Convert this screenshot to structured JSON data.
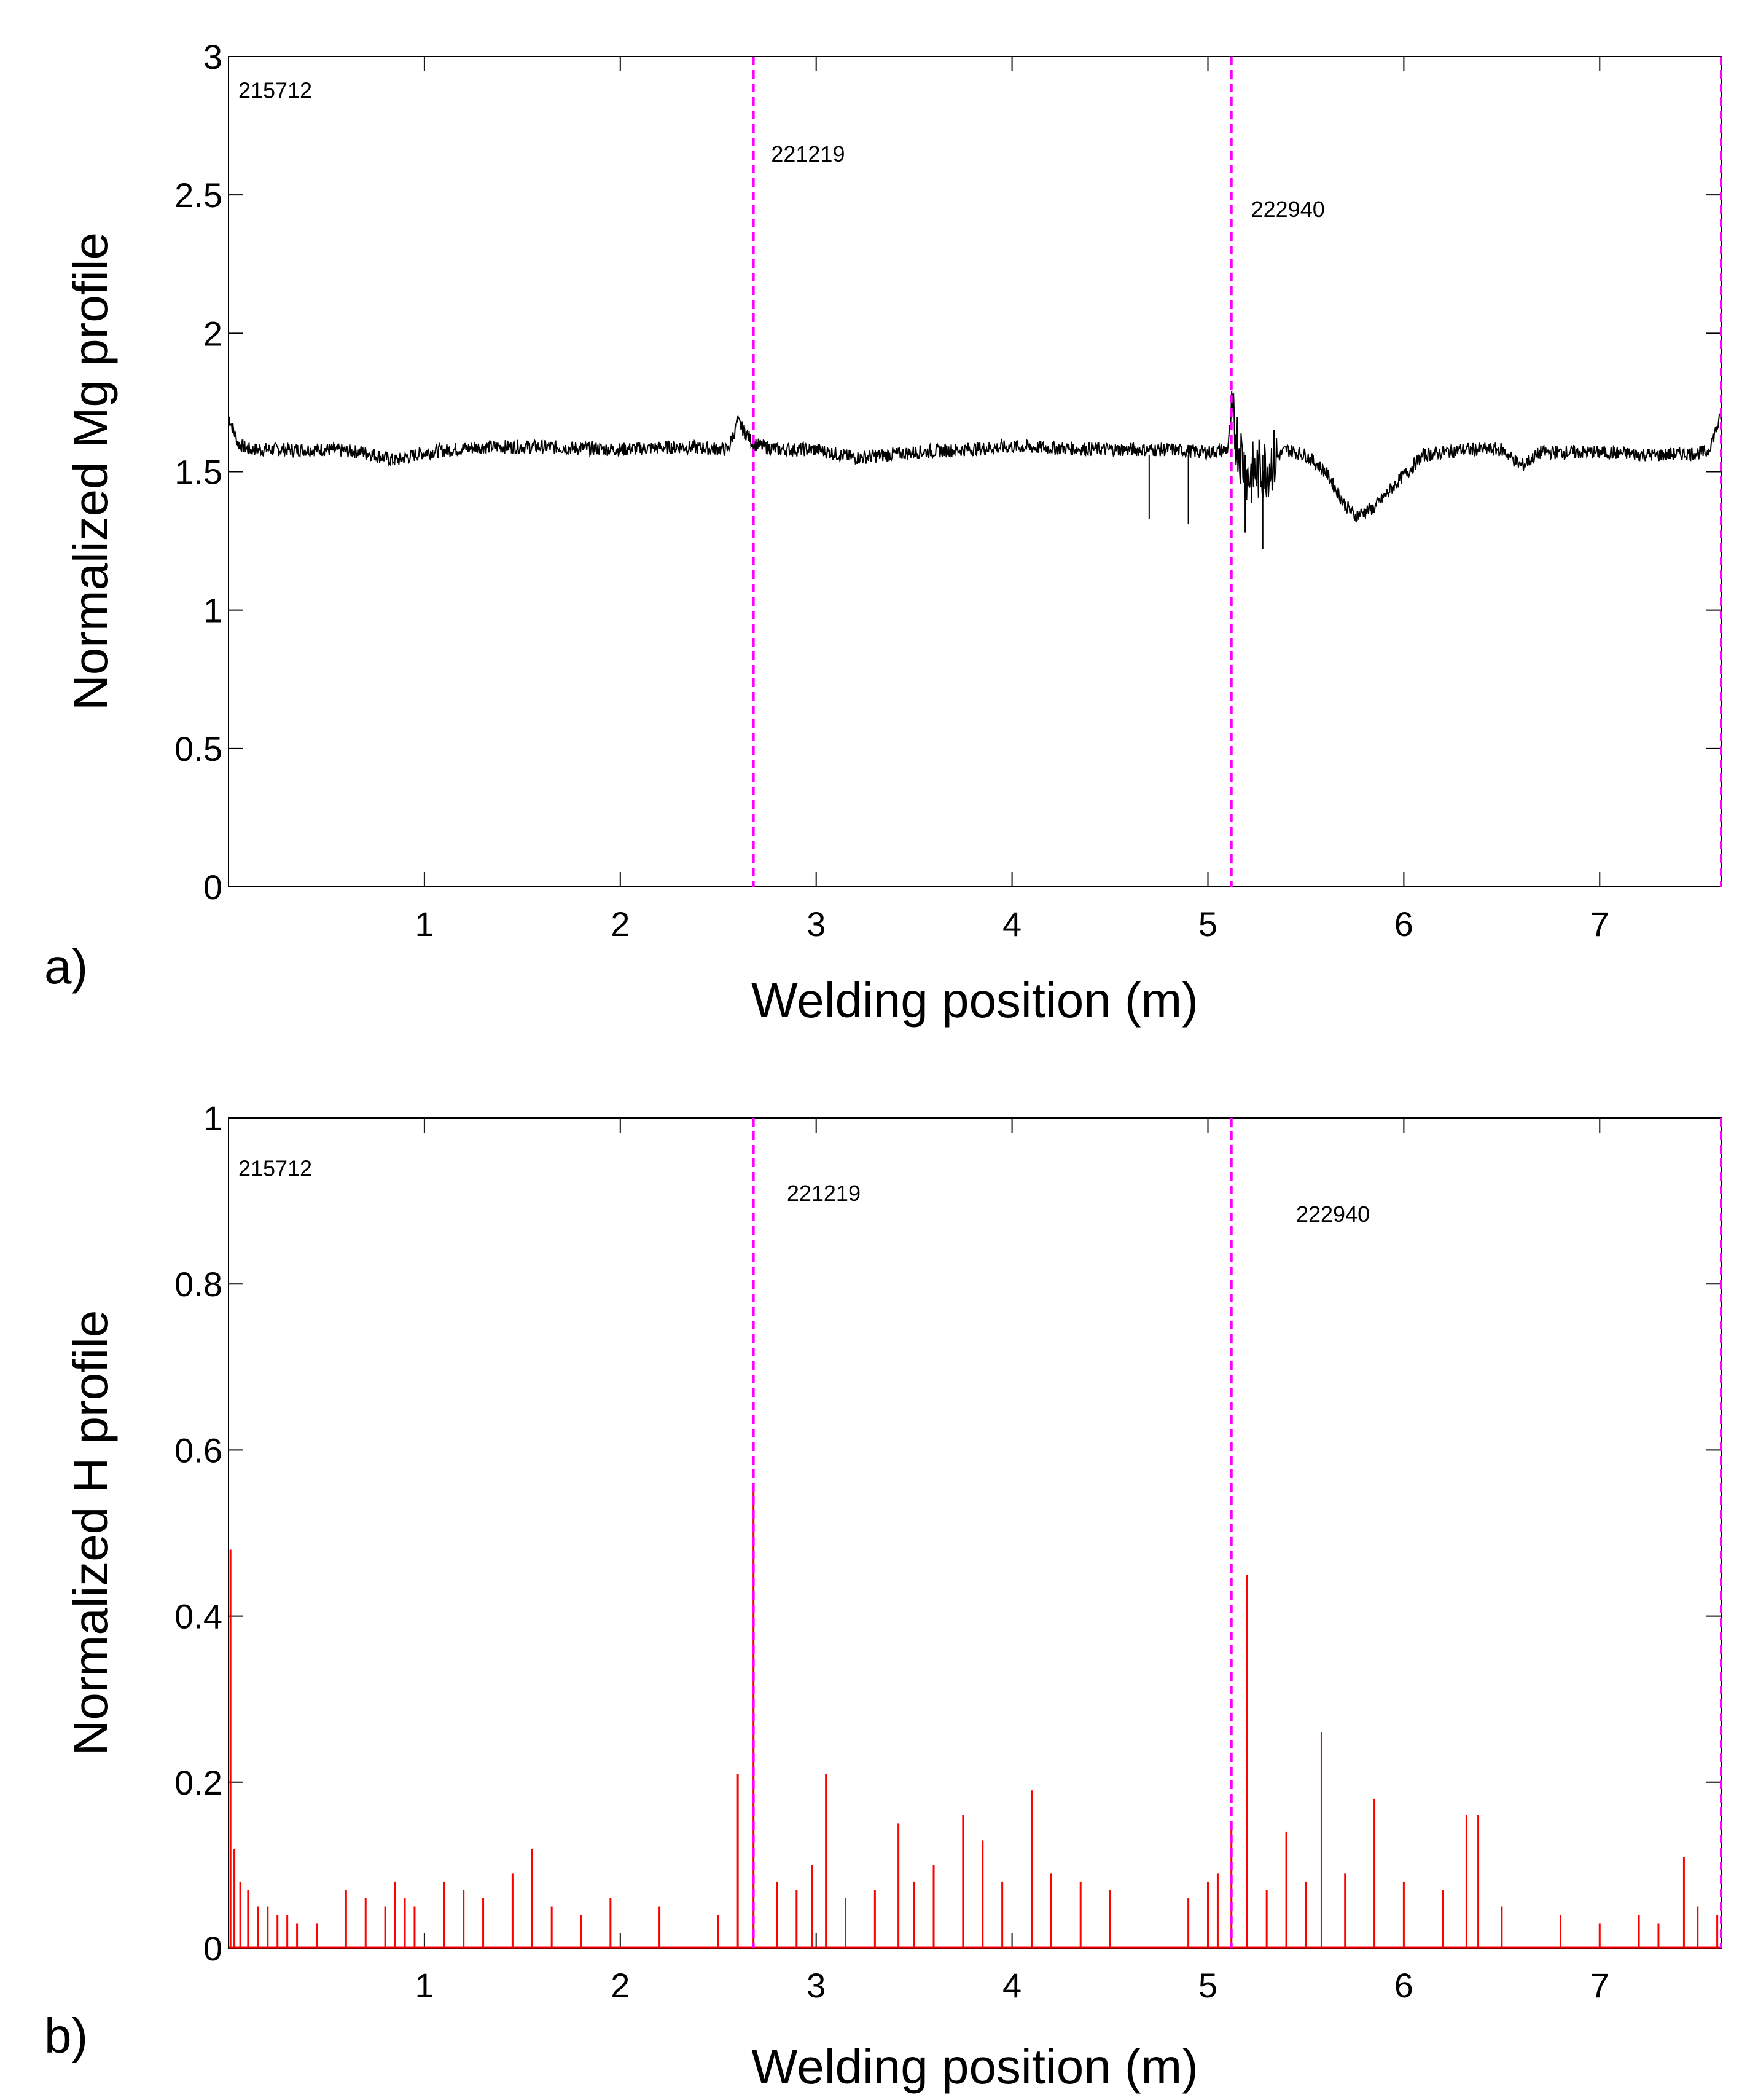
{
  "chart_data": [
    {
      "type": "line",
      "panel_label": "a)",
      "xlabel": "Welding position (m)",
      "ylabel": "Normalized Mg profile",
      "xlim": [
        0,
        7.62
      ],
      "ylim": [
        0,
        3
      ],
      "xticks": [
        1,
        2,
        3,
        4,
        5,
        6,
        7
      ],
      "xtick_labels": [
        "1",
        "2",
        "3",
        "4",
        "5",
        "6",
        "7"
      ],
      "yticks": [
        0,
        0.5,
        1,
        1.5,
        2,
        2.5,
        3
      ],
      "ytick_labels": [
        "0",
        "0.5",
        "1",
        "1.5",
        "2",
        "2.5",
        "3"
      ],
      "line_color": "#000000",
      "divider_color": "#ff00ff",
      "dividers_x": [
        2.68,
        5.12,
        7.62
      ],
      "annotations": [
        {
          "x": 0.05,
          "y": 2.85,
          "text": "215712"
        },
        {
          "x": 2.77,
          "y": 2.62,
          "text": "221219"
        },
        {
          "x": 5.22,
          "y": 2.42,
          "text": "222940"
        }
      ],
      "series": [
        {
          "name": "Mg profile",
          "x": [
            0,
            0.05,
            0.1,
            0.3,
            0.5,
            0.7,
            0.85,
            1.0,
            1.3,
            1.6,
            2.0,
            2.3,
            2.55,
            2.6,
            2.68,
            2.8,
            3.0,
            3.2,
            3.5,
            4.0,
            4.5,
            4.8,
            5.0,
            5.1,
            5.12,
            5.2,
            5.3,
            5.4,
            5.5,
            5.6,
            5.7,
            5.75,
            5.85,
            5.95,
            6.1,
            6.3,
            6.5,
            6.6,
            6.7,
            7.0,
            7.3,
            7.55,
            7.62
          ],
          "y": [
            1.7,
            1.6,
            1.58,
            1.58,
            1.58,
            1.57,
            1.54,
            1.57,
            1.59,
            1.59,
            1.58,
            1.59,
            1.58,
            1.68,
            1.6,
            1.58,
            1.58,
            1.55,
            1.57,
            1.59,
            1.58,
            1.58,
            1.57,
            1.58,
            1.7,
            1.48,
            1.52,
            1.58,
            1.56,
            1.5,
            1.38,
            1.34,
            1.37,
            1.45,
            1.56,
            1.58,
            1.58,
            1.52,
            1.57,
            1.57,
            1.56,
            1.57,
            1.7
          ]
        }
      ],
      "outliers": [
        {
          "x": 4.7,
          "y": 1.33
        },
        {
          "x": 4.9,
          "y": 1.31
        },
        {
          "x": 5.19,
          "y": 1.28
        },
        {
          "x": 5.28,
          "y": 1.22
        }
      ]
    },
    {
      "type": "bar",
      "panel_label": "b)",
      "xlabel": "Welding position (m)",
      "ylabel": "Normalized H profile",
      "xlim": [
        0,
        7.62
      ],
      "ylim": [
        0,
        1
      ],
      "xticks": [
        1,
        2,
        3,
        4,
        5,
        6,
        7
      ],
      "xtick_labels": [
        "1",
        "2",
        "3",
        "4",
        "5",
        "6",
        "7"
      ],
      "yticks": [
        0,
        0.2,
        0.4,
        0.6,
        0.8,
        1
      ],
      "ytick_labels": [
        "0",
        "0.2",
        "0.4",
        "0.6",
        "0.8",
        "1"
      ],
      "bar_color": "#ff0000",
      "divider_color": "#ff00ff",
      "dividers_x": [
        2.68,
        5.12,
        7.62
      ],
      "annotations": [
        {
          "x": 0.05,
          "y": 0.93,
          "text": "215712"
        },
        {
          "x": 2.85,
          "y": 0.9,
          "text": "221219"
        },
        {
          "x": 5.45,
          "y": 0.875,
          "text": "222940"
        }
      ],
      "spikes": {
        "x": [
          0.01,
          0.03,
          0.06,
          0.1,
          0.15,
          0.2,
          0.25,
          0.3,
          0.35,
          0.45,
          0.6,
          0.7,
          0.8,
          0.85,
          0.9,
          0.95,
          1.1,
          1.2,
          1.3,
          1.45,
          1.55,
          1.65,
          1.8,
          1.95,
          2.2,
          2.5,
          2.6,
          2.68,
          2.8,
          2.9,
          2.98,
          3.05,
          3.15,
          3.3,
          3.42,
          3.5,
          3.6,
          3.75,
          3.85,
          3.95,
          4.1,
          4.2,
          4.35,
          4.5,
          4.9,
          5.0,
          5.05,
          5.12,
          5.2,
          5.3,
          5.4,
          5.5,
          5.58,
          5.7,
          5.85,
          6.0,
          6.2,
          6.32,
          6.38,
          6.5,
          6.8,
          7.0,
          7.2,
          7.3,
          7.43,
          7.5,
          7.6
        ],
        "y": [
          0.48,
          0.12,
          0.08,
          0.07,
          0.05,
          0.05,
          0.04,
          0.04,
          0.03,
          0.03,
          0.07,
          0.06,
          0.05,
          0.08,
          0.06,
          0.05,
          0.08,
          0.07,
          0.06,
          0.09,
          0.12,
          0.05,
          0.04,
          0.06,
          0.05,
          0.04,
          0.21,
          0.56,
          0.08,
          0.07,
          0.1,
          0.21,
          0.06,
          0.07,
          0.15,
          0.08,
          0.1,
          0.16,
          0.13,
          0.08,
          0.19,
          0.09,
          0.08,
          0.07,
          0.06,
          0.08,
          0.09,
          0.15,
          0.45,
          0.07,
          0.14,
          0.08,
          0.26,
          0.09,
          0.18,
          0.08,
          0.07,
          0.16,
          0.16,
          0.05,
          0.04,
          0.03,
          0.04,
          0.03,
          0.11,
          0.05,
          0.04
        ]
      }
    }
  ]
}
